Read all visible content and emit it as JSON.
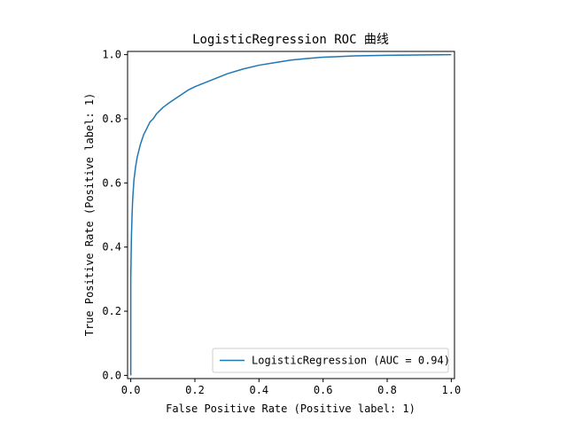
{
  "chart_data": {
    "type": "line",
    "title": "LogisticRegression ROC 曲线",
    "xlabel": "False Positive Rate (Positive label: 1)",
    "ylabel": "True Positive Rate (Positive label: 1)",
    "xlim": [
      -0.01,
      1.01
    ],
    "ylim": [
      -0.01,
      1.01
    ],
    "xticks": [
      "0.0",
      "0.2",
      "0.4",
      "0.6",
      "0.8",
      "1.0"
    ],
    "yticks": [
      "0.0",
      "0.2",
      "0.4",
      "0.6",
      "0.8",
      "1.0"
    ],
    "grid": false,
    "legend_position": "lower-right",
    "series": [
      {
        "name": "LogisticRegression (AUC = 0.94)",
        "color": "#1f77b4",
        "x": [
          0.0,
          0.0,
          0.002,
          0.004,
          0.006,
          0.008,
          0.01,
          0.015,
          0.02,
          0.03,
          0.04,
          0.05,
          0.06,
          0.07,
          0.08,
          0.1,
          0.12,
          0.15,
          0.18,
          0.2,
          0.25,
          0.3,
          0.35,
          0.4,
          0.45,
          0.5,
          0.55,
          0.6,
          0.7,
          0.8,
          0.9,
          1.0
        ],
        "y": [
          0.0,
          0.3,
          0.43,
          0.5,
          0.55,
          0.58,
          0.61,
          0.65,
          0.68,
          0.72,
          0.75,
          0.77,
          0.79,
          0.8,
          0.815,
          0.835,
          0.85,
          0.87,
          0.89,
          0.9,
          0.92,
          0.94,
          0.955,
          0.967,
          0.975,
          0.983,
          0.988,
          0.992,
          0.996,
          0.998,
          0.999,
          1.0
        ]
      }
    ]
  }
}
